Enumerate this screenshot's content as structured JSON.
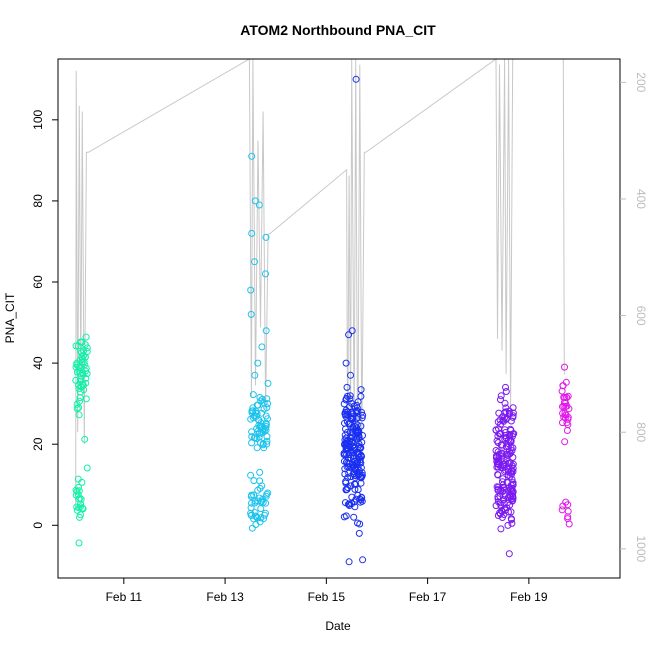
{
  "chart_data": {
    "type": "scatter",
    "title": "ATOM2 Northbound PNA_CIT",
    "xlabel": "Date",
    "ylabel": "PNA_CIT",
    "xlim": [
      9.7,
      20.8
    ],
    "ylim": [
      -13,
      115
    ],
    "x_ticks": [
      {
        "value": 11,
        "label": "Feb 11"
      },
      {
        "value": 13,
        "label": "Feb 13"
      },
      {
        "value": 15,
        "label": "Feb 15"
      },
      {
        "value": 17,
        "label": "Feb 17"
      },
      {
        "value": 19,
        "label": "Feb 19"
      }
    ],
    "y_ticks": [
      0,
      20,
      40,
      60,
      80,
      100
    ],
    "y2_ticks": [
      200,
      400,
      600,
      800,
      1000
    ],
    "y2_lim": [
      1050,
      160
    ],
    "line_color": "#c8c8c8",
    "groups": [
      {
        "x_start": 10.05,
        "x_end": 10.28,
        "color": "#12f0a8",
        "upper_center": 37,
        "upper_spread": 6,
        "upper_count": 55,
        "lower_center": 5,
        "lower_spread": 4,
        "lower_count": 22
      },
      {
        "x_start": 13.5,
        "x_end": 13.85,
        "color": "#1cc3ec",
        "upper_center": 25,
        "upper_spread": 4,
        "upper_count": 60,
        "lower_center": 6,
        "lower_spread": 3,
        "lower_count": 40,
        "extra": [
          91,
          80,
          79,
          72,
          71,
          65,
          62,
          58,
          52,
          48,
          44,
          40,
          37,
          35
        ]
      },
      {
        "x_start": 15.35,
        "x_end": 15.72,
        "color": "#1a2ff0",
        "upper_center": 20,
        "upper_spread": 6,
        "upper_count": 170,
        "lower_center": 8,
        "lower_spread": 4,
        "lower_count": 30,
        "extra": [
          110,
          48,
          47,
          40,
          37,
          34,
          -2,
          -8.5,
          -9
        ]
      },
      {
        "x_start": 18.35,
        "x_end": 18.7,
        "color": "#7b1af0",
        "upper_center": 15,
        "upper_spread": 7,
        "upper_count": 150,
        "lower_center": 4,
        "lower_spread": 3,
        "lower_count": 20,
        "extra": [
          34,
          33,
          31,
          29,
          28,
          27,
          26,
          -7
        ]
      },
      {
        "x_start": 19.65,
        "x_end": 19.8,
        "color": "#e01ae8",
        "upper_center": 29,
        "upper_spread": 4,
        "upper_count": 30,
        "lower_center": 5,
        "lower_spread": 3,
        "lower_count": 8
      }
    ],
    "depth_line": [
      [
        10.05,
        930
      ],
      [
        10.06,
        180
      ],
      [
        10.09,
        800
      ],
      [
        10.12,
        240
      ],
      [
        10.15,
        720
      ],
      [
        10.18,
        250
      ],
      [
        10.22,
        820
      ],
      [
        10.26,
        320
      ],
      [
        10.3,
        320
      ],
      [
        13.48,
        160
      ],
      [
        13.52,
        740
      ],
      [
        13.55,
        160
      ],
      [
        13.6,
        720
      ],
      [
        13.65,
        300
      ],
      [
        13.7,
        620
      ],
      [
        13.75,
        250
      ],
      [
        13.8,
        760
      ],
      [
        13.85,
        460
      ],
      [
        13.88,
        460
      ],
      [
        15.4,
        350
      ],
      [
        15.42,
        860
      ],
      [
        15.45,
        360
      ],
      [
        15.48,
        780
      ],
      [
        15.5,
        160
      ],
      [
        15.55,
        800
      ],
      [
        15.58,
        160
      ],
      [
        15.62,
        880
      ],
      [
        15.66,
        170
      ],
      [
        15.7,
        820
      ],
      [
        15.75,
        320
      ],
      [
        15.78,
        320
      ],
      [
        18.35,
        160
      ],
      [
        18.38,
        640
      ],
      [
        18.42,
        170
      ],
      [
        18.47,
        660
      ],
      [
        18.52,
        160
      ],
      [
        18.55,
        700
      ],
      [
        18.6,
        160
      ],
      [
        18.64,
        760
      ],
      [
        18.68,
        160
      ],
      [
        18.7,
        160
      ],
      [
        19.68,
        160
      ],
      [
        19.7,
        700
      ],
      [
        19.72,
        700
      ]
    ]
  }
}
